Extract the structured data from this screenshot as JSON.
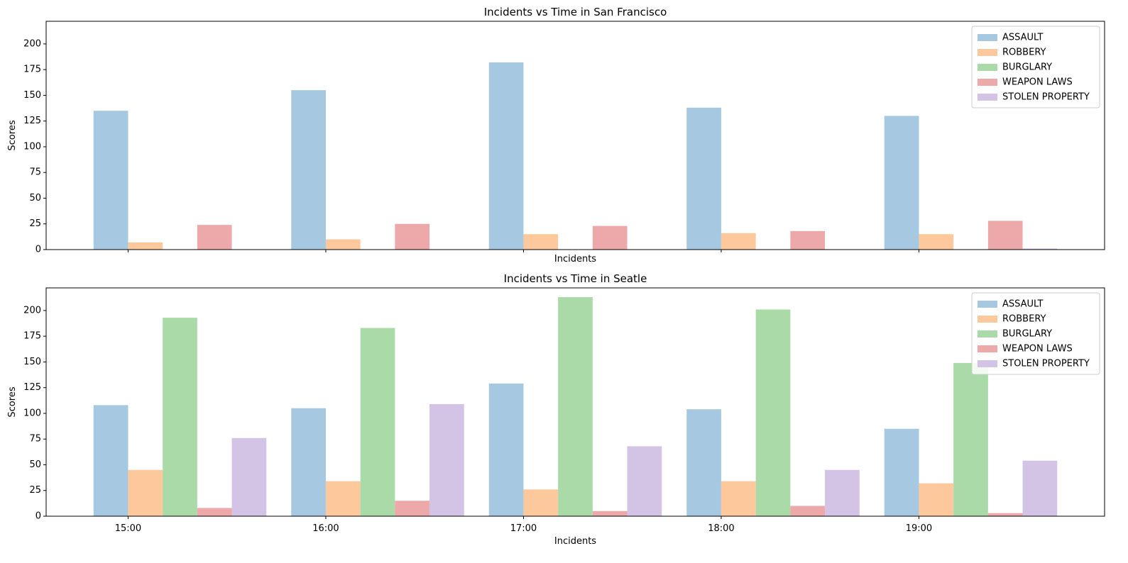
{
  "chart_data": [
    {
      "type": "bar",
      "title": "Incidents vs Time in San Francisco",
      "xlabel": "Incidents",
      "ylabel": "Scores",
      "categories": [
        "15:00",
        "16:00",
        "17:00",
        "18:00",
        "19:00"
      ],
      "show_xtick_labels": false,
      "ylim": [
        0,
        222
      ],
      "yticks": [
        0,
        25,
        50,
        75,
        100,
        125,
        150,
        175,
        200
      ],
      "grid": false,
      "legend_position": "top-right",
      "series": [
        {
          "name": "ASSAULT",
          "color": "#a6c8e0",
          "values": [
            135,
            155,
            182,
            138,
            130
          ]
        },
        {
          "name": "ROBBERY",
          "color": "#fdc99c",
          "values": [
            7,
            10,
            15,
            16,
            15
          ]
        },
        {
          "name": "BURGLARY",
          "color": "#a9daa8",
          "values": [
            0,
            0,
            0,
            0,
            0
          ]
        },
        {
          "name": "WEAPON LAWS",
          "color": "#eda8a9",
          "values": [
            24,
            25,
            23,
            18,
            28
          ]
        },
        {
          "name": "STOLEN PROPERTY",
          "color": "#d3c3e4",
          "values": [
            0,
            0,
            0,
            0,
            1
          ]
        }
      ]
    },
    {
      "type": "bar",
      "title": "Incidents vs Time in Seatle",
      "xlabel": "Incidents",
      "ylabel": "Scores",
      "categories": [
        "15:00",
        "16:00",
        "17:00",
        "18:00",
        "19:00"
      ],
      "show_xtick_labels": true,
      "ylim": [
        0,
        222
      ],
      "yticks": [
        0,
        25,
        50,
        75,
        100,
        125,
        150,
        175,
        200
      ],
      "grid": false,
      "legend_position": "top-right",
      "series": [
        {
          "name": "ASSAULT",
          "color": "#a6c8e0",
          "values": [
            108,
            105,
            129,
            104,
            85
          ]
        },
        {
          "name": "ROBBERY",
          "color": "#fdc99c",
          "values": [
            45,
            34,
            26,
            34,
            32
          ]
        },
        {
          "name": "BURGLARY",
          "color": "#a9daa8",
          "values": [
            193,
            183,
            213,
            201,
            149
          ]
        },
        {
          "name": "WEAPON LAWS",
          "color": "#eda8a9",
          "values": [
            8,
            15,
            5,
            10,
            3
          ]
        },
        {
          "name": "STOLEN PROPERTY",
          "color": "#d3c3e4",
          "values": [
            76,
            109,
            68,
            45,
            54
          ]
        }
      ]
    }
  ]
}
